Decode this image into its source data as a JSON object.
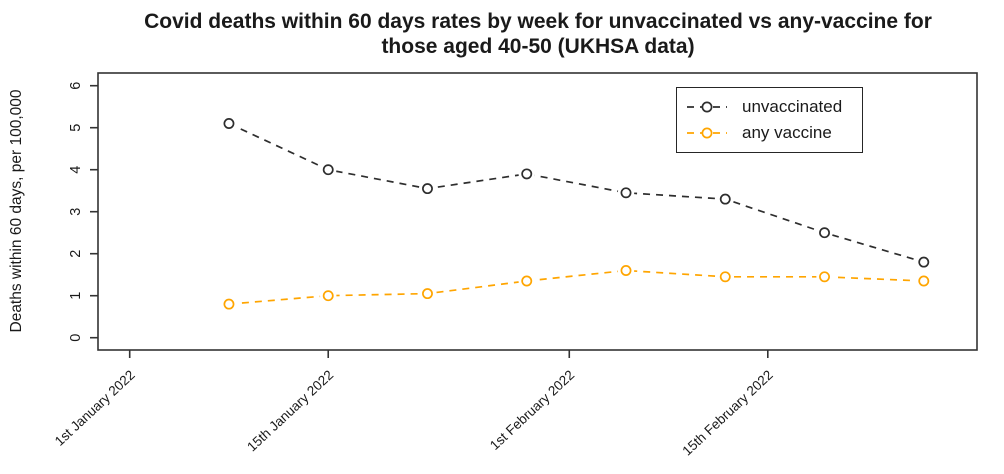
{
  "chart_data": {
    "type": "line",
    "title": "Covid deaths within 60 days rates by week for unvaccinated vs any-vaccine for those aged 40-50 (UKHSA data)",
    "title_lines": [
      "Covid deaths within 60 days rates by week for unvaccinated vs any-vaccine for",
      "those aged 40-50 (UKHSA data)"
    ],
    "xlabel": "",
    "ylabel": "Deaths within 60 days, per 100,000",
    "ylim": [
      -0.3,
      6.3
    ],
    "y_ticks": [
      0,
      1,
      2,
      3,
      4,
      5,
      6
    ],
    "x_axis_unit": "days since 1st January 2022",
    "x_ticks": [
      {
        "day": 0,
        "label": "1st January 2022"
      },
      {
        "day": 14,
        "label": "15th January 2022"
      },
      {
        "day": 31,
        "label": "1st February 2022"
      },
      {
        "day": 45,
        "label": "15th February 2022"
      }
    ],
    "x_days": [
      7,
      14,
      21,
      28,
      35,
      42,
      49,
      56
    ],
    "series": [
      {
        "name": "unvaccinated",
        "color": "#2e2e2e",
        "linestyle": "dashed",
        "marker": "open-circle",
        "values": [
          5.1,
          4.0,
          3.55,
          3.9,
          3.45,
          3.3,
          2.5,
          1.8
        ]
      },
      {
        "name": "any vaccine",
        "color": "#FFA500",
        "linestyle": "dashed",
        "marker": "open-circle",
        "values": [
          0.8,
          1.0,
          1.05,
          1.35,
          1.6,
          1.45,
          1.45,
          1.35
        ]
      }
    ],
    "legend": {
      "position": "top-right",
      "entries": [
        "unvaccinated",
        "any vaccine"
      ]
    },
    "grid": false,
    "frame_color": "#333333",
    "text_color": "#1a1a1a",
    "background_color": "#ffffff"
  }
}
